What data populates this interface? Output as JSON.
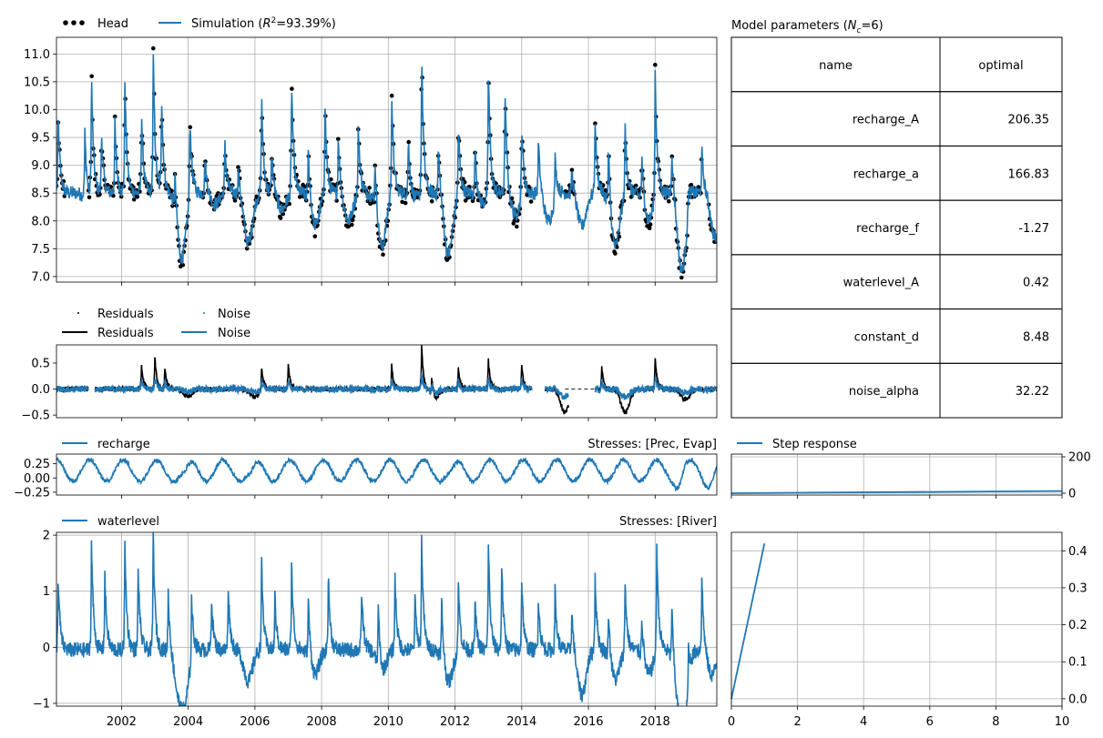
{
  "colors": {
    "simulation": "#1f77b4",
    "head": "#000000",
    "grid": "#b0b0b0"
  },
  "chart_data": [
    {
      "name": "head-simulation",
      "type": "line",
      "legend": [
        {
          "label": "Head",
          "style": "dots",
          "color": "#000000"
        },
        {
          "label": "Simulation (R²=93.39%)",
          "label_parts": [
            "Simulation (",
            "R",
            "2",
            "=93.39%)"
          ],
          "style": "line",
          "color": "#1f77b4"
        }
      ],
      "xlim": [
        2000.05,
        2019.85
      ],
      "ylim": [
        6.9,
        11.3
      ],
      "yticks": [
        7.0,
        7.5,
        8.0,
        8.5,
        9.0,
        9.5,
        10.0,
        10.5,
        11.0
      ],
      "ytick_labels": [
        "7.0",
        "7.5",
        "8.0",
        "8.5",
        "9.0",
        "9.5",
        "10.0",
        "10.5",
        "11.0"
      ],
      "grid": true,
      "peaks_sim": [
        [
          2000.1,
          9.95
        ],
        [
          2000.9,
          9.7
        ],
        [
          2001.1,
          10.7
        ],
        [
          2001.4,
          9.6
        ],
        [
          2001.8,
          9.8
        ],
        [
          2002.1,
          10.6
        ],
        [
          2002.6,
          10.0
        ],
        [
          2002.95,
          11.1
        ],
        [
          2003.2,
          10.3
        ],
        [
          2003.6,
          9.2
        ],
        [
          2004.05,
          10.1
        ],
        [
          2004.5,
          9.2
        ],
        [
          2005.1,
          9.4
        ],
        [
          2005.5,
          9.0
        ],
        [
          2006.2,
          10.3
        ],
        [
          2006.5,
          9.3
        ],
        [
          2007.1,
          10.6
        ],
        [
          2007.6,
          9.5
        ],
        [
          2008.1,
          10.2
        ],
        [
          2008.5,
          9.6
        ],
        [
          2009.1,
          9.8
        ],
        [
          2009.6,
          9.4
        ],
        [
          2010.1,
          10.4
        ],
        [
          2010.6,
          9.5
        ],
        [
          2011.0,
          11.1
        ],
        [
          2011.5,
          9.4
        ],
        [
          2012.1,
          9.8
        ],
        [
          2012.6,
          9.4
        ],
        [
          2013.0,
          10.9
        ],
        [
          2013.5,
          10.4
        ],
        [
          2014.0,
          9.9
        ],
        [
          2014.5,
          9.5
        ],
        [
          2015.0,
          9.3
        ],
        [
          2015.5,
          9.0
        ],
        [
          2016.2,
          9.9
        ],
        [
          2016.6,
          9.6
        ],
        [
          2017.1,
          9.8
        ],
        [
          2017.6,
          9.3
        ],
        [
          2018.0,
          10.9
        ],
        [
          2018.5,
          9.4
        ],
        [
          2019.0,
          9.0
        ],
        [
          2019.4,
          9.3
        ]
      ],
      "troughs_sim": [
        [
          2000.6,
          8.5
        ],
        [
          2001.0,
          8.4
        ],
        [
          2002.4,
          8.5
        ],
        [
          2003.8,
          7.3
        ],
        [
          2004.8,
          8.3
        ],
        [
          2005.8,
          7.6
        ],
        [
          2006.8,
          8.2
        ],
        [
          2007.8,
          7.9
        ],
        [
          2008.8,
          8.0
        ],
        [
          2009.8,
          7.5
        ],
        [
          2010.8,
          8.4
        ],
        [
          2011.8,
          7.4
        ],
        [
          2012.8,
          8.3
        ],
        [
          2013.8,
          8.1
        ],
        [
          2014.8,
          8.0
        ],
        [
          2015.8,
          7.9
        ],
        [
          2016.8,
          7.5
        ],
        [
          2017.8,
          8.0
        ],
        [
          2018.8,
          7.1
        ],
        [
          2019.8,
          7.7
        ]
      ],
      "gaps_head": [
        [
          2000.3,
          2001.0
        ],
        [
          2004.2,
          2004.4
        ],
        [
          2014.3,
          2015.3
        ],
        [
          2015.6,
          2016.2
        ],
        [
          2019.4,
          2019.6
        ]
      ]
    },
    {
      "name": "residuals-noise",
      "type": "line",
      "legend": [
        {
          "label": "Residuals",
          "style": "dot-marker",
          "color": "#000000"
        },
        {
          "label": "Noise",
          "style": "dot-marker",
          "color": "#1f77b4"
        },
        {
          "label": "Residuals",
          "style": "line",
          "color": "#000000"
        },
        {
          "label": "Noise",
          "style": "line",
          "color": "#1f77b4"
        }
      ],
      "xlim": [
        2000.05,
        2019.85
      ],
      "ylim": [
        -0.55,
        0.85
      ],
      "yticks": [
        -0.5,
        0.0,
        0.5
      ],
      "ytick_labels": [
        "−0.5",
        "0.0",
        "0.5"
      ],
      "grid": false,
      "spikes_res": [
        [
          2002.6,
          0.45
        ],
        [
          2003.0,
          0.65
        ],
        [
          2003.3,
          0.4
        ],
        [
          2006.2,
          0.45
        ],
        [
          2007.0,
          0.5
        ],
        [
          2010.1,
          0.45
        ],
        [
          2011.0,
          0.8
        ],
        [
          2011.3,
          0.35
        ],
        [
          2012.1,
          0.4
        ],
        [
          2013.0,
          0.55
        ],
        [
          2014.0,
          0.45
        ],
        [
          2016.4,
          0.4
        ],
        [
          2018.0,
          0.6
        ]
      ],
      "dips_res": [
        [
          2004.0,
          -0.15
        ],
        [
          2006.0,
          -0.15
        ],
        [
          2011.4,
          -0.2
        ],
        [
          2015.3,
          -0.45
        ],
        [
          2017.1,
          -0.45
        ],
        [
          2018.9,
          -0.2
        ]
      ],
      "gaps_res": [
        [
          2001.0,
          2001.2
        ],
        [
          2014.3,
          2014.7
        ],
        [
          2015.4,
          2016.2
        ]
      ]
    },
    {
      "name": "recharge-contribution",
      "type": "line",
      "legend": [
        {
          "label": "recharge",
          "style": "line",
          "color": "#1f77b4"
        }
      ],
      "title_right": "Stresses: [Prec, Evap]",
      "xlim": [
        2000.05,
        2019.85
      ],
      "ylim": [
        -0.3,
        0.42
      ],
      "yticks": [
        -0.25,
        0.0,
        0.25
      ],
      "ytick_labels": [
        "−0.25",
        "0.00",
        "0.25"
      ],
      "grid": false,
      "amplitude": 0.25,
      "low_years": [
        [
          2003.9,
          -0.2
        ],
        [
          2005.9,
          -0.18
        ],
        [
          2011.9,
          -0.15
        ],
        [
          2018.7,
          -0.3
        ],
        [
          2019.6,
          -0.2
        ]
      ]
    },
    {
      "name": "waterlevel-contribution",
      "type": "line",
      "legend": [
        {
          "label": "waterlevel",
          "style": "line",
          "color": "#1f77b4"
        }
      ],
      "title_right": "Stresses: [River]",
      "xlim": [
        2000.05,
        2019.85
      ],
      "ylim": [
        -1.05,
        2.05
      ],
      "yticks": [
        -1,
        0,
        1,
        2
      ],
      "ytick_labels": [
        "−1",
        "0",
        "1",
        "2"
      ],
      "xticks": [
        2002,
        2004,
        2006,
        2008,
        2010,
        2012,
        2014,
        2016,
        2018
      ],
      "xtick_labels": [
        "2002",
        "2004",
        "2006",
        "2008",
        "2010",
        "2012",
        "2014",
        "2016",
        "2018"
      ],
      "grid": true,
      "peaks": [
        [
          2000.1,
          1.25
        ],
        [
          2001.1,
          1.9
        ],
        [
          2001.5,
          1.3
        ],
        [
          2002.1,
          1.85
        ],
        [
          2002.5,
          1.4
        ],
        [
          2002.95,
          2.05
        ],
        [
          2003.4,
          1.0
        ],
        [
          2004.1,
          1.1
        ],
        [
          2004.7,
          0.9
        ],
        [
          2005.2,
          1.1
        ],
        [
          2006.2,
          1.5
        ],
        [
          2006.6,
          0.9
        ],
        [
          2007.1,
          1.5
        ],
        [
          2007.6,
          1.0
        ],
        [
          2008.2,
          1.3
        ],
        [
          2009.2,
          1.0
        ],
        [
          2009.7,
          1.1
        ],
        [
          2010.2,
          1.3
        ],
        [
          2010.8,
          0.9
        ],
        [
          2011.0,
          1.9
        ],
        [
          2011.6,
          1.0
        ],
        [
          2012.1,
          1.2
        ],
        [
          2012.6,
          0.8
        ],
        [
          2013.0,
          1.9
        ],
        [
          2013.4,
          1.5
        ],
        [
          2014.0,
          1.2
        ],
        [
          2014.5,
          0.9
        ],
        [
          2015.0,
          1.0
        ],
        [
          2015.5,
          0.7
        ],
        [
          2016.2,
          1.3
        ],
        [
          2016.6,
          0.8
        ],
        [
          2017.1,
          1.2
        ],
        [
          2017.6,
          0.7
        ],
        [
          2018.05,
          1.9
        ],
        [
          2018.5,
          1.0
        ],
        [
          2019.0,
          0.8
        ],
        [
          2019.4,
          1.3
        ]
      ],
      "troughs": [
        [
          2003.7,
          -0.7
        ],
        [
          2003.9,
          -0.85
        ],
        [
          2005.8,
          -0.6
        ],
        [
          2007.8,
          -0.5
        ],
        [
          2009.8,
          -0.5
        ],
        [
          2011.8,
          -0.65
        ],
        [
          2015.8,
          -0.85
        ],
        [
          2016.8,
          -0.6
        ],
        [
          2017.8,
          -0.5
        ],
        [
          2018.7,
          -0.9
        ],
        [
          2018.9,
          -1.05
        ],
        [
          2019.7,
          -0.5
        ]
      ]
    },
    {
      "name": "step-response-recharge",
      "type": "line",
      "legend": [
        {
          "label": "Step response",
          "style": "line",
          "color": "#1f77b4"
        }
      ],
      "xlim": [
        0,
        10
      ],
      "ylim": [
        -10,
        215
      ],
      "yticks": [
        0,
        200
      ],
      "ytick_labels": [
        "0",
        "200"
      ],
      "grid": true,
      "x": [
        0,
        10
      ],
      "y": [
        0,
        12
      ]
    },
    {
      "name": "step-response-waterlevel",
      "type": "line",
      "xlim": [
        0,
        10
      ],
      "ylim": [
        -0.02,
        0.45
      ],
      "yticks": [
        0.0,
        0.1,
        0.2,
        0.3,
        0.4
      ],
      "ytick_labels": [
        "0.0",
        "0.1",
        "0.2",
        "0.3",
        "0.4"
      ],
      "xticks": [
        0,
        2,
        4,
        6,
        8,
        10
      ],
      "xtick_labels": [
        "0",
        "2",
        "4",
        "6",
        "8",
        "10"
      ],
      "grid": true,
      "x": [
        0,
        1
      ],
      "y": [
        0,
        0.42
      ]
    },
    {
      "name": "model-parameters",
      "type": "table",
      "title_parts": [
        "Model parameters (",
        "N",
        "c",
        "=6)"
      ],
      "columns": [
        "name",
        "optimal"
      ],
      "rows": [
        [
          "recharge_A",
          "206.35"
        ],
        [
          "recharge_a",
          "166.83"
        ],
        [
          "recharge_f",
          "-1.27"
        ],
        [
          "waterlevel_A",
          "0.42"
        ],
        [
          "constant_d",
          "8.48"
        ],
        [
          "noise_alpha",
          "32.22"
        ]
      ]
    }
  ]
}
